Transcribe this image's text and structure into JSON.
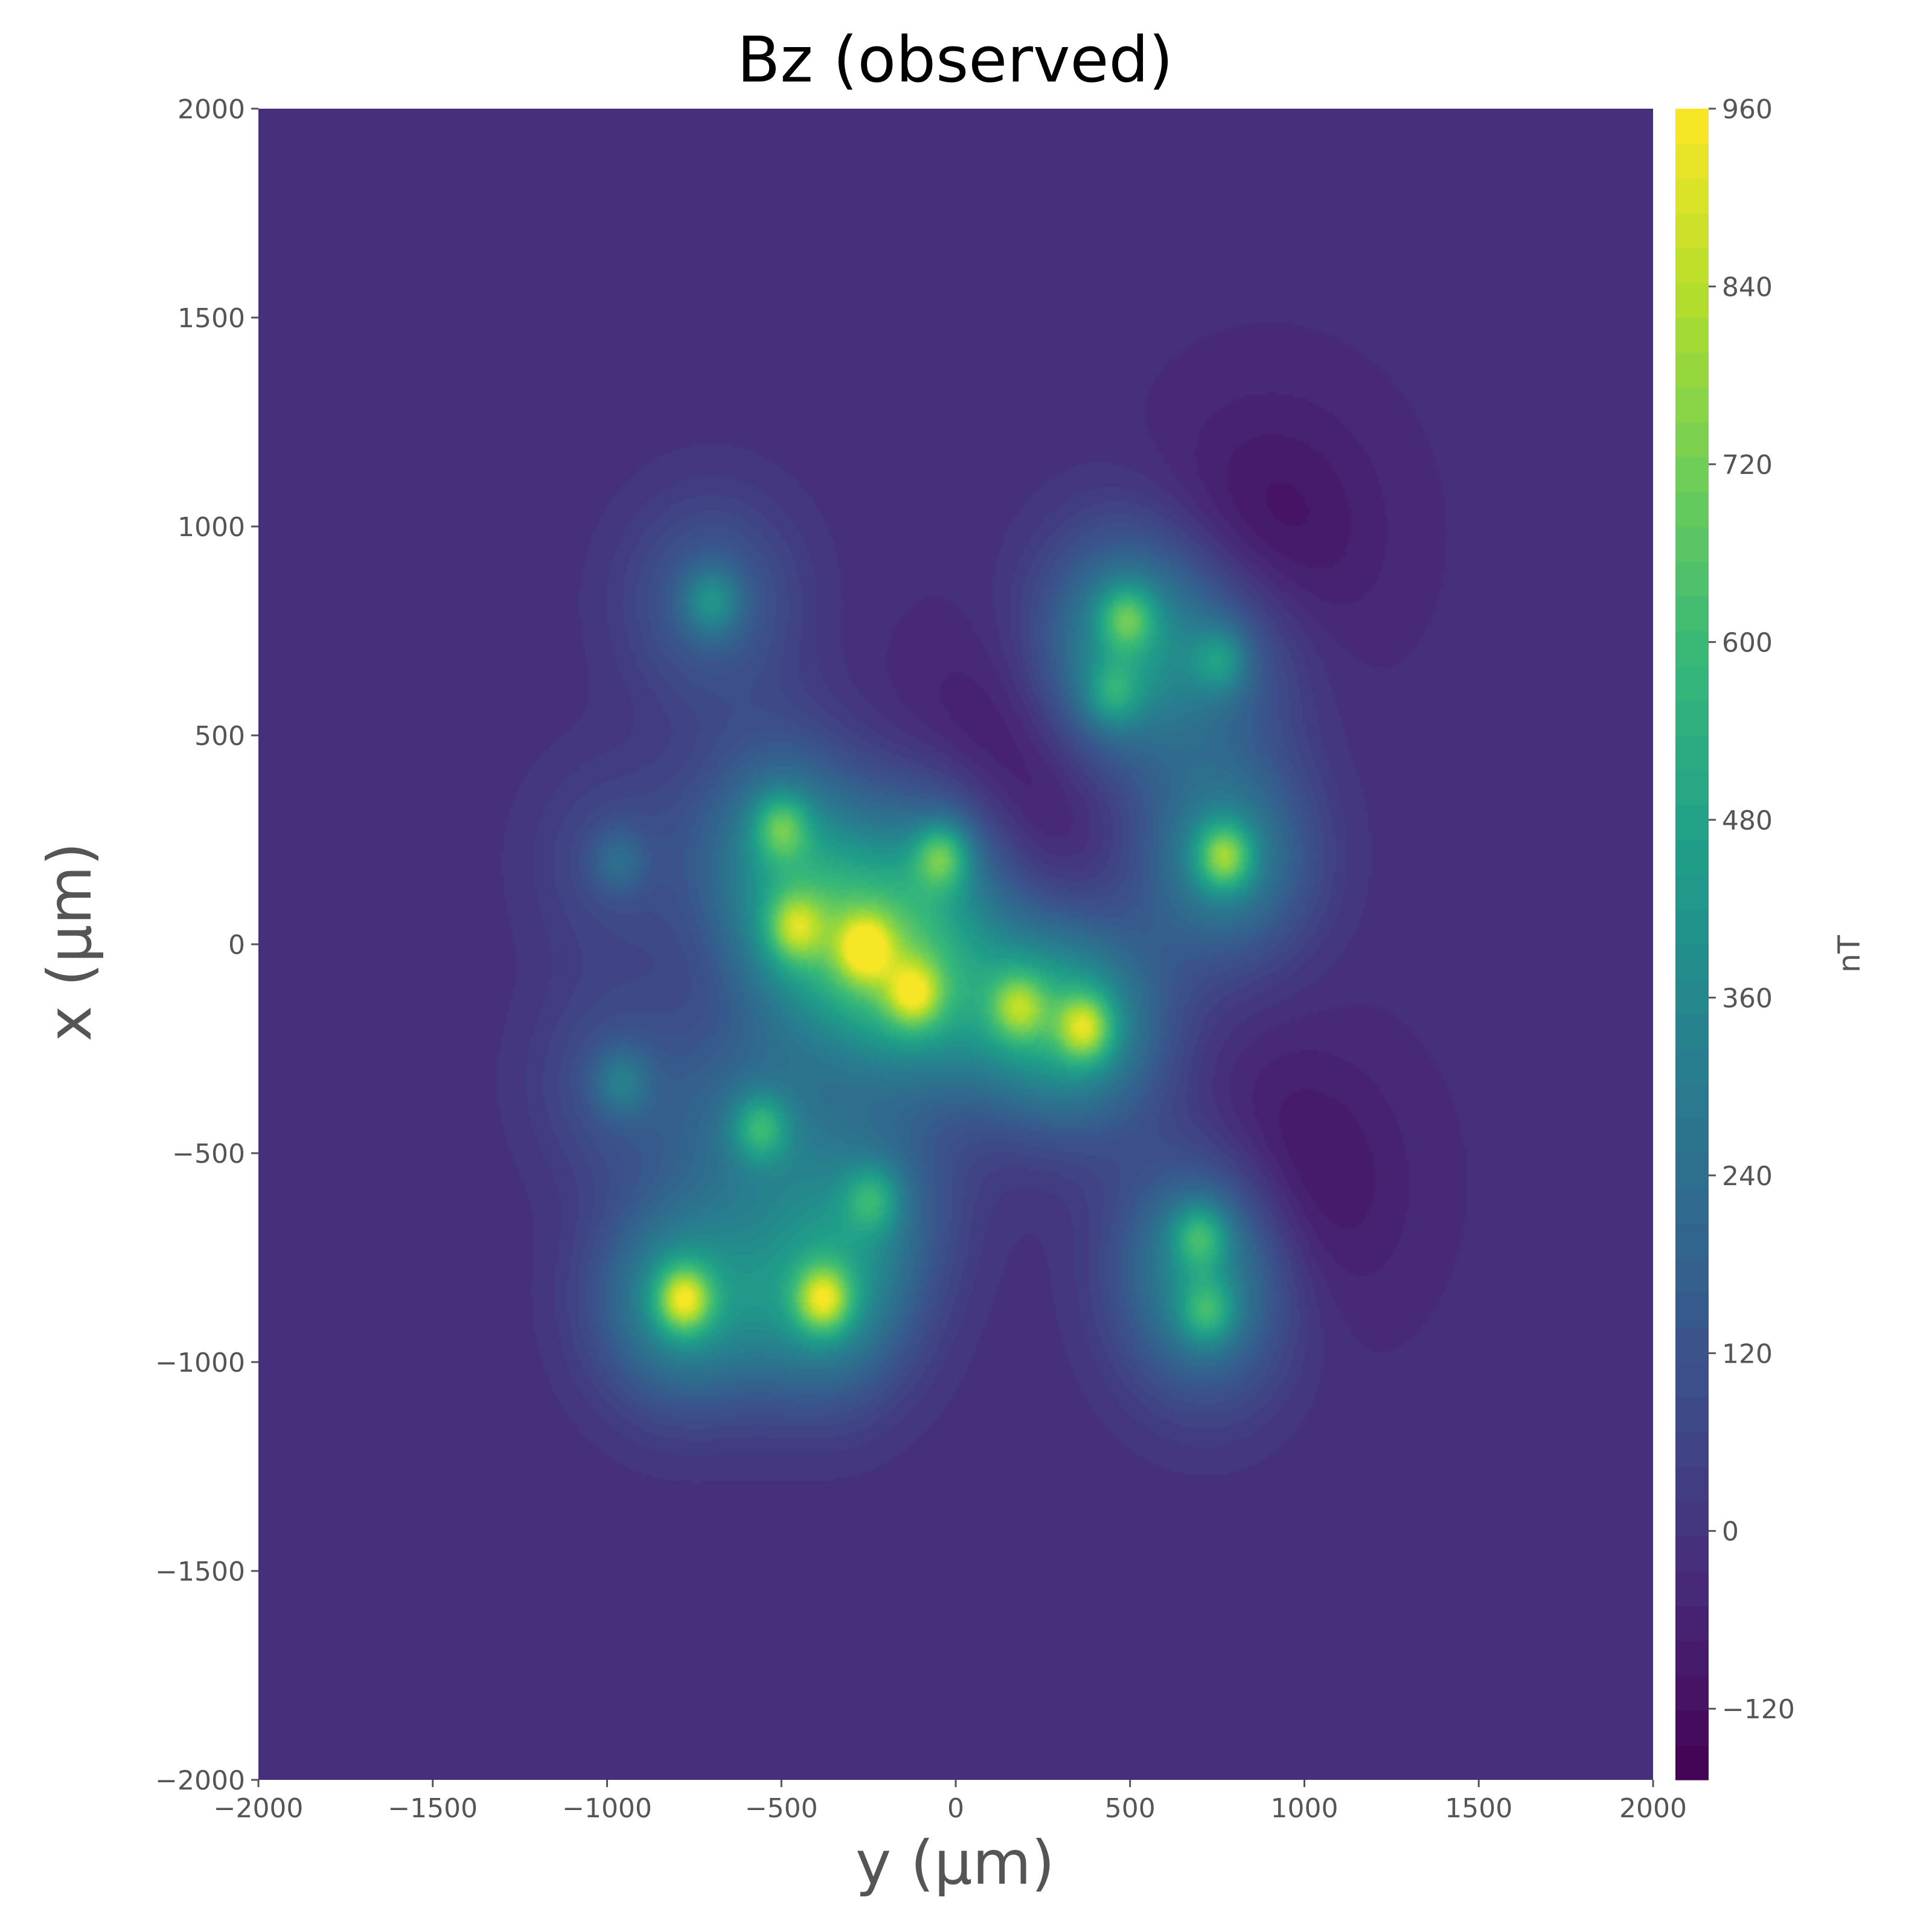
{
  "chart_data": {
    "type": "heatmap",
    "title": "Bz (observed)",
    "xlabel": "y (μm)",
    "ylabel": "x (μm)",
    "xlim": [
      -2000,
      2000
    ],
    "ylim": [
      -2000,
      2000
    ],
    "x_ticks": [
      "−2000",
      "−1500",
      "−1000",
      "−500",
      "0",
      "500",
      "1000",
      "1500",
      "2000"
    ],
    "y_ticks": [
      "−2000",
      "−1500",
      "−1000",
      "−500",
      "0",
      "500",
      "1000",
      "1500",
      "2000"
    ],
    "colorbar": {
      "label": "nT",
      "range": [
        -168,
        960
      ],
      "ticks": [
        "−120",
        "0",
        "120",
        "240",
        "360",
        "480",
        "600",
        "720",
        "840",
        "960"
      ],
      "tick_values": [
        -120,
        0,
        120,
        240,
        360,
        480,
        600,
        720,
        840,
        960
      ],
      "colormap": "viridis",
      "levels": 48
    },
    "background_level": -20,
    "field_sources": [
      {
        "y": -780,
        "x": -850,
        "peak_nT": 960
      },
      {
        "y": -380,
        "x": -850,
        "peak_nT": 900
      },
      {
        "y": -560,
        "x": -440,
        "peak_nT": 560
      },
      {
        "y": -240,
        "x": -610,
        "peak_nT": 480
      },
      {
        "y": -960,
        "x": -330,
        "peak_nT": 330
      },
      {
        "y": -500,
        "x": 280,
        "peak_nT": 600
      },
      {
        "y": -460,
        "x": 40,
        "peak_nT": 640
      },
      {
        "y": -260,
        "x": -10,
        "peak_nT": 720
      },
      {
        "y": -120,
        "x": -120,
        "peak_nT": 720
      },
      {
        "y": -40,
        "x": 210,
        "peak_nT": 700
      },
      {
        "y": 180,
        "x": -150,
        "peak_nT": 620
      },
      {
        "y": 370,
        "x": -200,
        "peak_nT": 800
      },
      {
        "y": 490,
        "x": 780,
        "peak_nT": 600
      },
      {
        "y": 450,
        "x": 600,
        "peak_nT": 420
      },
      {
        "y": 760,
        "x": 680,
        "peak_nT": 420
      },
      {
        "y": 770,
        "x": 210,
        "peak_nT": 820
      },
      {
        "y": 700,
        "x": -700,
        "peak_nT": 560
      },
      {
        "y": 720,
        "x": -880,
        "peak_nT": 520
      },
      {
        "y": -700,
        "x": 820,
        "peak_nT": 440
      },
      {
        "y": -970,
        "x": 200,
        "peak_nT": 250
      }
    ],
    "negative_regions": [
      {
        "y": 120,
        "x": 350,
        "min_nT": -168
      },
      {
        "y": 950,
        "x": -580,
        "min_nT": -130
      },
      {
        "y": 900,
        "x": 980,
        "min_nT": -120
      }
    ]
  }
}
